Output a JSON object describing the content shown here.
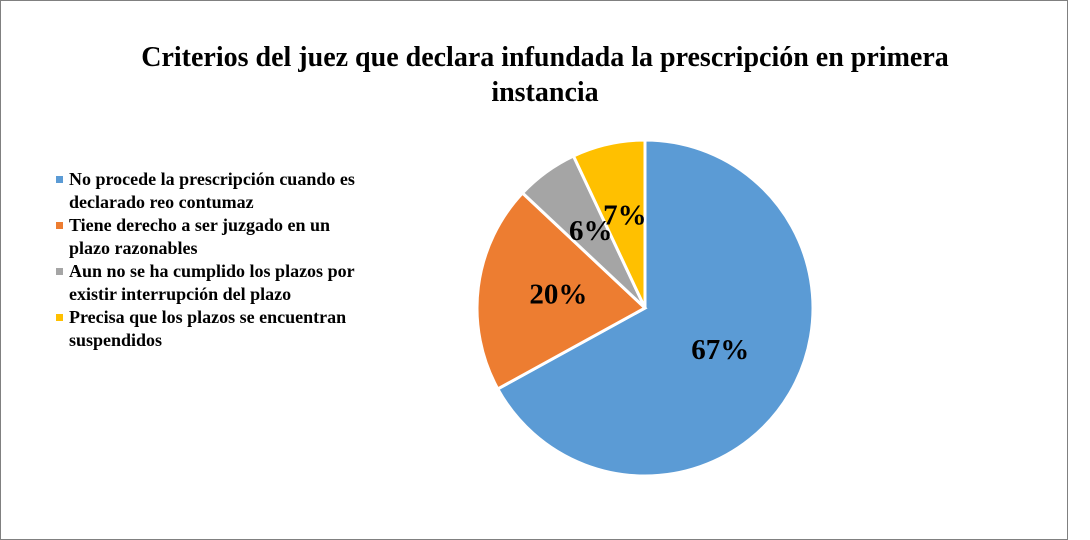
{
  "chart_data": {
    "type": "pie",
    "title": "Criterios del juez que declara infundada la prescripción en primera instancia",
    "categories": [
      "No procede la prescripción cuando es declarado reo contumaz",
      "Tiene derecho a ser juzgado en un plazo razonables",
      "Aun no se ha cumplido los plazos por existir interrupción del plazo",
      "Precisa que los plazos se encuentran suspendidos"
    ],
    "values": [
      67,
      20,
      6,
      7
    ],
    "value_labels": [
      "67%",
      "20%",
      "6%",
      "7%"
    ],
    "colors": [
      "#5b9bd5",
      "#ed7d31",
      "#a5a5a5",
      "#ffc000"
    ],
    "legend": "left"
  }
}
